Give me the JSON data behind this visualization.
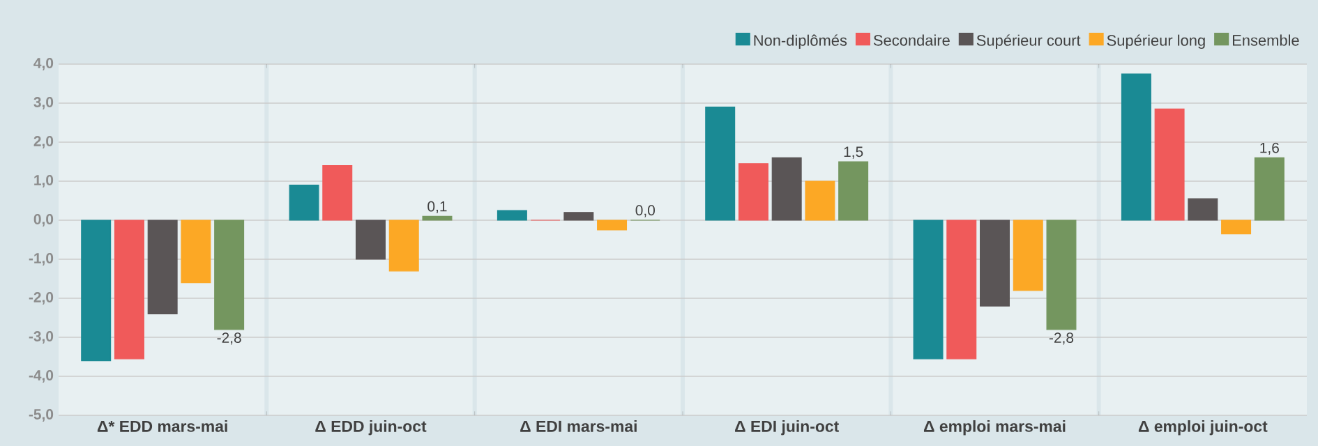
{
  "chart_data": {
    "type": "bar",
    "categories": [
      "Δ* EDD mars-mai",
      "Δ EDD juin-oct",
      "Δ EDI mars-mai",
      "Δ EDI juin-oct",
      "Δ emploi mars-mai",
      "Δ emploi juin-oct"
    ],
    "series": [
      {
        "name": "Non-diplômés",
        "color": "#1a8a94",
        "values": [
          -3.6,
          0.9,
          0.25,
          2.9,
          -3.55,
          3.75
        ]
      },
      {
        "name": "Secondaire",
        "color": "#f05a5a",
        "values": [
          -3.55,
          1.4,
          0,
          1.45,
          -3.55,
          2.85
        ]
      },
      {
        "name": "Supérieur court",
        "color": "#5a5556",
        "values": [
          -2.4,
          -1.0,
          0.2,
          1.6,
          -2.2,
          0.55
        ]
      },
      {
        "name": "Supérieur long",
        "color": "#fca825",
        "values": [
          -1.6,
          -1.3,
          -0.25,
          1.0,
          -1.8,
          -0.35
        ]
      },
      {
        "name": "Ensemble",
        "color": "#74965f",
        "values": [
          -2.8,
          0.1,
          0.0,
          1.5,
          -2.8,
          1.6
        ],
        "value_labels": [
          "-2,8",
          "0,1",
          "0,0",
          "1,5",
          "-2,8",
          "1,6"
        ]
      }
    ],
    "ylim": [
      -5,
      4
    ],
    "yticks": [
      {
        "value": -5,
        "label": "-5,0"
      },
      {
        "value": -4,
        "label": "-4,0"
      },
      {
        "value": -3,
        "label": "-3,0"
      },
      {
        "value": -2,
        "label": "-2,0"
      },
      {
        "value": -1,
        "label": "-1,0"
      },
      {
        "value": 0,
        "label": "0,0"
      },
      {
        "value": 1,
        "label": "1,0"
      },
      {
        "value": 2,
        "label": "2,0"
      },
      {
        "value": 3,
        "label": "3,0"
      },
      {
        "value": 4,
        "label": "4,0"
      }
    ],
    "grid": "y",
    "legend": "top right"
  }
}
